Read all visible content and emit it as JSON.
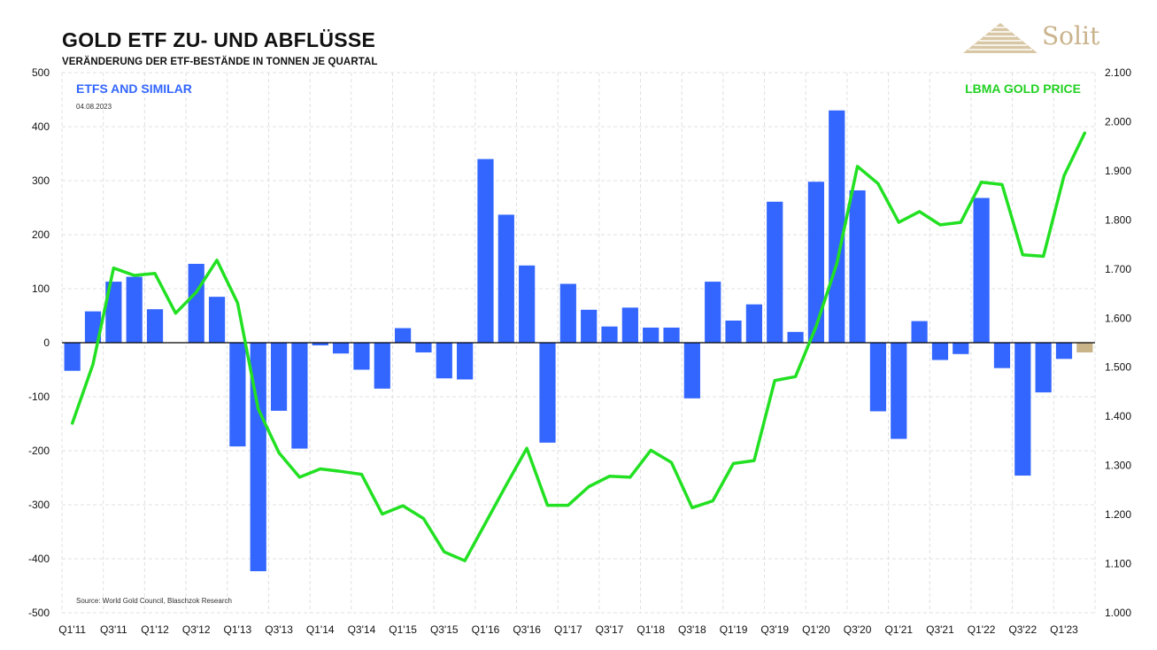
{
  "header": {
    "title": "GOLD ETF ZU- UND ABFLÜSSE",
    "subtitle": "VERÄNDERUNG DER ETF-BESTÄNDE IN TONNEN JE QUARTAL"
  },
  "logo": {
    "text": "Solit"
  },
  "colors": {
    "bars": "#3366ff",
    "last_bar": "#c9b48a",
    "gold_line": "#22e022",
    "zero_line": "#000000",
    "grid": "#e0e0e0"
  },
  "chart_data": {
    "type": "bar+line",
    "title": "GOLD ETF ZU- UND ABFLÜSSE",
    "subtitle": "VERÄNDERUNG DER ETF-BESTÄNDE IN TONNEN JE QUARTAL",
    "date": "04.08.2023",
    "source": "Source: World Gold Council, Blaschzok Research",
    "legend": {
      "bars": "ETFS AND SIMILAR",
      "line": "LBMA GOLD PRICE"
    },
    "x_tick_labels": [
      "Q1'11",
      "Q3'11",
      "Q1'12",
      "Q3'12",
      "Q1'13",
      "Q3'13",
      "Q1'14",
      "Q3'14",
      "Q1'15",
      "Q3'15",
      "Q1'16",
      "Q3'16",
      "Q1'17",
      "Q3'17",
      "Q1'18",
      "Q3'18",
      "Q1'19",
      "Q3'19",
      "Q1'20",
      "Q3'20",
      "Q1'21",
      "Q3'21",
      "Q1'22",
      "Q3'22",
      "Q1'23"
    ],
    "y_left": {
      "min": -500,
      "max": 500,
      "step": 100,
      "tick_labels": [
        "500",
        "400",
        "300",
        "200",
        "100",
        "0",
        "-100",
        "-200",
        "-300",
        "-400",
        "-500"
      ]
    },
    "y_right": {
      "min": 1000,
      "max": 2100,
      "step": 100,
      "tick_labels": [
        "2.100",
        "2.000",
        "1.900",
        "1.800",
        "1.700",
        "1.600",
        "1.500",
        "1.400",
        "1.300",
        "1.200",
        "1.100",
        "1.000"
      ]
    },
    "bars": [
      -52,
      58,
      113,
      122,
      62,
      0,
      146,
      85,
      -192,
      -423,
      -126,
      -196,
      -5,
      -20,
      -50,
      -85,
      27,
      -18,
      -66,
      -68,
      340,
      237,
      143,
      -185,
      109,
      61,
      30,
      65,
      28,
      28,
      -103,
      113,
      41,
      71,
      261,
      20,
      298,
      430,
      282,
      -127,
      -178,
      40,
      -32,
      -21,
      268,
      -47,
      -246,
      -92,
      -30,
      -18
    ],
    "gold_price": [
      1386,
      1506,
      1702,
      1687,
      1691,
      1610,
      1653,
      1718,
      1631,
      1415,
      1326,
      1276,
      1293,
      1288,
      1282,
      1201,
      1218,
      1192,
      1124,
      1106,
      1183,
      1260,
      1335,
      1219,
      1219,
      1257,
      1278,
      1276,
      1331,
      1306,
      1214,
      1228,
      1304,
      1310,
      1473,
      1481,
      1583,
      1711,
      1909,
      1874,
      1795,
      1817,
      1790,
      1795,
      1877,
      1872,
      1729,
      1726,
      1890,
      1977
    ]
  }
}
